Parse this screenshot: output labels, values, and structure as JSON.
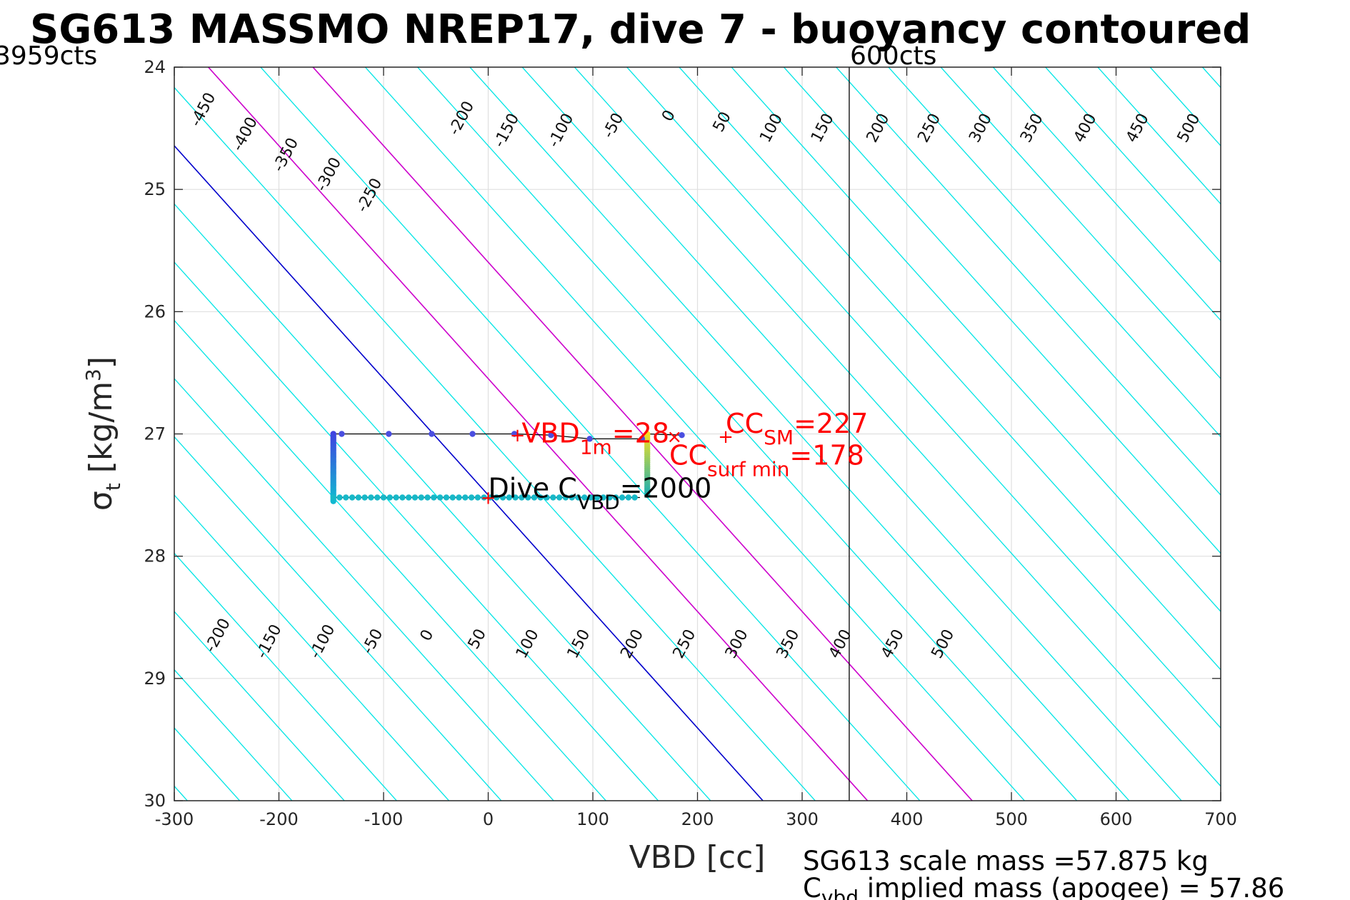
{
  "chart_data": {
    "type": "line",
    "title": "SG613 MASSMO NREP17, dive 7 - buoyancy contoured",
    "xlabel": "VBD [cc]",
    "ylabel_symbol": "σ",
    "ylabel_sub": "t",
    "ylabel_rest": " [kg/m",
    "ylabel_sup": "3",
    "ylabel_end": "]",
    "xlim": [
      -300,
      700
    ],
    "ylim": [
      24,
      30
    ],
    "y_reversed": true,
    "grid": true,
    "xticks": [
      -300,
      -200,
      -100,
      0,
      100,
      200,
      300,
      400,
      500,
      600,
      700
    ],
    "yticks": [
      24,
      25,
      26,
      27,
      28,
      29,
      30
    ],
    "xticklabels": [
      "-300",
      "-200",
      "-100",
      "0",
      "100",
      "200",
      "300",
      "400",
      "500",
      "600",
      "700"
    ],
    "yticklabels": [
      "24",
      "25",
      "26",
      "27",
      "28",
      "29",
      "30"
    ],
    "corner_left_label": "3959cts",
    "corner_right_label": "600cts",
    "pump_limit_vbd": 345,
    "contours": {
      "slope_vbd_per_sigma": 105,
      "zero_vbd_at_sigma_27_5": 0,
      "spacing_cc": 50,
      "levels": [
        -450,
        -400,
        -350,
        -300,
        -250,
        -200,
        -150,
        -100,
        -50,
        0,
        50,
        100,
        150,
        200,
        250,
        300,
        350,
        400,
        450,
        500
      ],
      "color": "#00e5e5",
      "highlight_levels": [
        0,
        100,
        200
      ],
      "highlight_colors": {
        "0": "#0000cc",
        "100": "#cc00cc",
        "200": "#cc00cc"
      },
      "top_labels": [
        {
          "text": "-450",
          "x": -272,
          "y": 24.35
        },
        {
          "text": "-400",
          "x": -232,
          "y": 24.55
        },
        {
          "text": "-350",
          "x": -193,
          "y": 24.72
        },
        {
          "text": "-300",
          "x": -152,
          "y": 24.88
        },
        {
          "text": "-250",
          "x": -113,
          "y": 25.05
        },
        {
          "text": "-200",
          "x": -25,
          "y": 24.42
        },
        {
          "text": "-150",
          "x": 18,
          "y": 24.52
        },
        {
          "text": "-100",
          "x": 70,
          "y": 24.52
        },
        {
          "text": "-50",
          "x": 120,
          "y": 24.48
        },
        {
          "text": "0",
          "x": 173,
          "y": 24.4
        },
        {
          "text": "50",
          "x": 224,
          "y": 24.45
        },
        {
          "text": "100",
          "x": 271,
          "y": 24.5
        },
        {
          "text": "150",
          "x": 320,
          "y": 24.5
        },
        {
          "text": "200",
          "x": 373,
          "y": 24.5
        },
        {
          "text": "250",
          "x": 422,
          "y": 24.5
        },
        {
          "text": "300",
          "x": 471,
          "y": 24.5
        },
        {
          "text": "350",
          "x": 520,
          "y": 24.5
        },
        {
          "text": "400",
          "x": 571,
          "y": 24.5
        },
        {
          "text": "450",
          "x": 621,
          "y": 24.5
        },
        {
          "text": "500",
          "x": 670,
          "y": 24.5
        }
      ],
      "bottom_labels": [
        {
          "text": "-200",
          "x": -258,
          "y": 28.65
        },
        {
          "text": "-150",
          "x": -209,
          "y": 28.7
        },
        {
          "text": "-100",
          "x": -158,
          "y": 28.7
        },
        {
          "text": "-50",
          "x": -110,
          "y": 28.7
        },
        {
          "text": "0",
          "x": -58,
          "y": 28.65
        },
        {
          "text": "50",
          "x": -10,
          "y": 28.68
        },
        {
          "text": "100",
          "x": 38,
          "y": 28.72
        },
        {
          "text": "150",
          "x": 87,
          "y": 28.72
        },
        {
          "text": "200",
          "x": 138,
          "y": 28.72
        },
        {
          "text": "250",
          "x": 188,
          "y": 28.72
        },
        {
          "text": "300",
          "x": 238,
          "y": 28.72
        },
        {
          "text": "350",
          "x": 287,
          "y": 28.72
        },
        {
          "text": "400",
          "x": 337,
          "y": 28.72
        },
        {
          "text": "450",
          "x": 387,
          "y": 28.72
        },
        {
          "text": "500",
          "x": 435,
          "y": 28.72
        }
      ]
    },
    "series": [
      {
        "color": "#000000",
        "points": [
          [
            -148,
            27.0
          ],
          [
            -140,
            27.0
          ],
          [
            -95,
            27.0
          ],
          [
            -55,
            27.0
          ],
          [
            -15,
            27.0
          ],
          [
            25,
            27.0
          ],
          [
            60,
            27.01
          ],
          [
            97,
            27.04
          ],
          [
            147,
            27.04
          ],
          [
            153,
            27.0
          ],
          [
            185,
            27.01
          ]
        ]
      }
    ],
    "scatter_top": {
      "color": "#4a4ee0",
      "points": [
        [
          -140,
          27.0
        ],
        [
          -95,
          27.0
        ],
        [
          -54,
          27.0
        ],
        [
          -15,
          27.0
        ],
        [
          25,
          27.0
        ],
        [
          60,
          27.01
        ],
        [
          97,
          27.04
        ],
        [
          147,
          27.04
        ],
        [
          185,
          27.01
        ]
      ]
    },
    "left_column": {
      "vbd": -148,
      "sigma_from": 27.0,
      "sigma_to": 27.55,
      "color_top": "#4040e0",
      "color_bottom": "#10b8d0"
    },
    "bottom_row": {
      "sigma": 27.52,
      "vbd_from": -148,
      "vbd_to": 145,
      "step": 6,
      "color": "#17b8c8"
    },
    "right_column": {
      "vbd": 152,
      "sigma_from": 27.0,
      "sigma_to": 27.5,
      "color_top": "#f8e020",
      "color_bottom": "#20b0b0"
    },
    "markers": [
      {
        "text": "+",
        "x": 0,
        "y": 27.52,
        "color": "#ff0000"
      },
      {
        "text": "+",
        "x": 28,
        "y": 27.01,
        "color": "#ff0000"
      },
      {
        "text": "+",
        "x": 227,
        "y": 27.02,
        "color": "#ff0000"
      },
      {
        "text": "×",
        "x": 178,
        "y": 27.02,
        "color": "#ff0000"
      }
    ],
    "annotations": {
      "vbd1m": {
        "main": "VBD",
        "sub": "1m",
        "rest": "=28",
        "x": 32,
        "y": 27.0,
        "color": "#ff0000"
      },
      "ccsm": {
        "main": "CC",
        "sub": "SM",
        "rest": "=227",
        "x": 227,
        "y": 26.92,
        "color": "#ff0000"
      },
      "ccsurf": {
        "main": "CC",
        "sub": "surf min",
        "rest": "=178",
        "x": 173,
        "y": 27.18,
        "color": "#ff0000"
      },
      "divec": {
        "main": "Dive C",
        "sub": "VBD",
        "rest": "=2000",
        "x": 0,
        "y": 27.45,
        "color": "#000000"
      }
    },
    "mass_note": {
      "line1": "SG613 scale mass =57.875 kg",
      "line2_main": "C",
      "line2_sub": "vbd",
      "line2_rest": " implied mass (apogee) = 57.86"
    }
  }
}
